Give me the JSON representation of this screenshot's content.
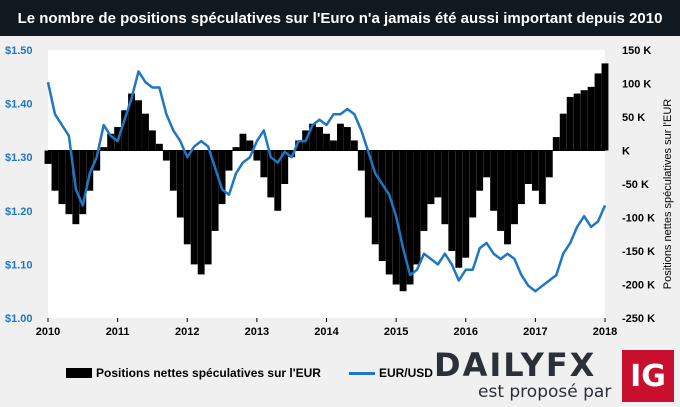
{
  "title": "Le nombre de positions spéculatives sur l'Euro n'a jamais été aussi important depuis 2010",
  "legend": {
    "bar_label": "Positions nettes spéculatives sur l'EUR",
    "line_label": "EUR/USD"
  },
  "right_axis_title": "Positions nettes spéculatives sur l'EUR",
  "brand": {
    "name": "DAILYFX",
    "subtitle": "est proposé par",
    "logo_text": "IG"
  },
  "colors": {
    "bars": "#000000",
    "line": "#1f77c4",
    "left_axis_labels": "#1f77c4",
    "title_bg": "#101820",
    "logo_red": "#c8102e"
  },
  "chart_data": {
    "type": "bar",
    "x_ticks": [
      "2010",
      "2011",
      "2012",
      "2013",
      "2014",
      "2015",
      "2016",
      "2017",
      "2018"
    ],
    "xlim": [
      2010,
      2018
    ],
    "left_axis": {
      "ticks": [
        "$1.00",
        "$1.10",
        "$1.20",
        "$1.30",
        "$1.40",
        "$1.50"
      ],
      "ylim": [
        1.0,
        1.5
      ]
    },
    "right_axis": {
      "ticks": [
        "-250 K",
        "-200 K",
        "-150 K",
        "-100 K",
        "-50 K",
        "K",
        "50 K",
        "100 K",
        "150 K"
      ],
      "ylim": [
        -250,
        150
      ],
      "unit": "K"
    },
    "series": [
      {
        "name": "Positions nettes spéculatives sur l'EUR",
        "kind": "bar",
        "axis": "right",
        "x": [
          2010.0,
          2010.1,
          2010.2,
          2010.3,
          2010.4,
          2010.5,
          2010.6,
          2010.7,
          2010.8,
          2010.9,
          2011.0,
          2011.1,
          2011.2,
          2011.3,
          2011.4,
          2011.5,
          2011.6,
          2011.7,
          2011.8,
          2011.9,
          2012.0,
          2012.1,
          2012.2,
          2012.3,
          2012.4,
          2012.5,
          2012.6,
          2012.7,
          2012.8,
          2012.9,
          2013.0,
          2013.1,
          2013.2,
          2013.3,
          2013.4,
          2013.5,
          2013.6,
          2013.7,
          2013.8,
          2013.9,
          2014.0,
          2014.1,
          2014.2,
          2014.3,
          2014.4,
          2014.5,
          2014.6,
          2014.7,
          2014.8,
          2014.9,
          2015.0,
          2015.1,
          2015.2,
          2015.3,
          2015.4,
          2015.5,
          2015.6,
          2015.7,
          2015.8,
          2015.9,
          2016.0,
          2016.1,
          2016.2,
          2016.3,
          2016.4,
          2016.5,
          2016.6,
          2016.7,
          2016.8,
          2016.9,
          2017.0,
          2017.1,
          2017.2,
          2017.3,
          2017.4,
          2017.5,
          2017.6,
          2017.7,
          2017.8,
          2017.9,
          2018.0
        ],
        "values": [
          -20,
          -60,
          -80,
          -95,
          -110,
          -95,
          -60,
          -30,
          5,
          25,
          35,
          60,
          85,
          75,
          55,
          30,
          10,
          -15,
          -60,
          -100,
          -140,
          -170,
          -185,
          -170,
          -120,
          -80,
          -30,
          5,
          25,
          15,
          -15,
          -40,
          -70,
          -90,
          -50,
          -10,
          15,
          30,
          40,
          35,
          25,
          15,
          40,
          35,
          15,
          -30,
          -100,
          -140,
          -165,
          -185,
          -200,
          -210,
          -200,
          -170,
          -120,
          -80,
          -70,
          -110,
          -150,
          -175,
          -160,
          -100,
          -60,
          -40,
          -90,
          -120,
          -140,
          -110,
          -80,
          -50,
          -60,
          -80,
          -40,
          20,
          55,
          80,
          85,
          90,
          95,
          115,
          130
        ]
      },
      {
        "name": "EUR/USD",
        "kind": "line",
        "axis": "left",
        "x": [
          2010.0,
          2010.1,
          2010.2,
          2010.3,
          2010.4,
          2010.5,
          2010.6,
          2010.7,
          2010.8,
          2010.9,
          2011.0,
          2011.1,
          2011.2,
          2011.3,
          2011.4,
          2011.5,
          2011.6,
          2011.7,
          2011.8,
          2011.9,
          2012.0,
          2012.1,
          2012.2,
          2012.3,
          2012.4,
          2012.5,
          2012.6,
          2012.7,
          2012.8,
          2012.9,
          2013.0,
          2013.1,
          2013.2,
          2013.3,
          2013.4,
          2013.5,
          2013.6,
          2013.7,
          2013.8,
          2013.9,
          2014.0,
          2014.1,
          2014.2,
          2014.3,
          2014.4,
          2014.5,
          2014.6,
          2014.7,
          2014.8,
          2014.9,
          2015.0,
          2015.1,
          2015.2,
          2015.3,
          2015.4,
          2015.5,
          2015.6,
          2015.7,
          2015.8,
          2015.9,
          2016.0,
          2016.1,
          2016.2,
          2016.3,
          2016.4,
          2016.5,
          2016.6,
          2016.7,
          2016.8,
          2016.9,
          2017.0,
          2017.1,
          2017.2,
          2017.3,
          2017.4,
          2017.5,
          2017.6,
          2017.7,
          2017.8,
          2017.9,
          2018.0
        ],
        "values": [
          1.44,
          1.38,
          1.36,
          1.34,
          1.24,
          1.21,
          1.27,
          1.3,
          1.36,
          1.34,
          1.33,
          1.37,
          1.41,
          1.46,
          1.44,
          1.43,
          1.43,
          1.38,
          1.35,
          1.33,
          1.3,
          1.32,
          1.33,
          1.32,
          1.28,
          1.24,
          1.23,
          1.27,
          1.29,
          1.3,
          1.33,
          1.35,
          1.3,
          1.29,
          1.31,
          1.3,
          1.33,
          1.33,
          1.36,
          1.37,
          1.36,
          1.38,
          1.38,
          1.39,
          1.38,
          1.35,
          1.31,
          1.27,
          1.25,
          1.23,
          1.19,
          1.13,
          1.08,
          1.09,
          1.12,
          1.11,
          1.1,
          1.12,
          1.1,
          1.07,
          1.09,
          1.09,
          1.13,
          1.14,
          1.12,
          1.11,
          1.12,
          1.11,
          1.08,
          1.06,
          1.05,
          1.06,
          1.07,
          1.08,
          1.12,
          1.14,
          1.17,
          1.19,
          1.17,
          1.18,
          1.21
        ]
      }
    ],
    "grid": false,
    "legend_position": "bottom-left"
  }
}
